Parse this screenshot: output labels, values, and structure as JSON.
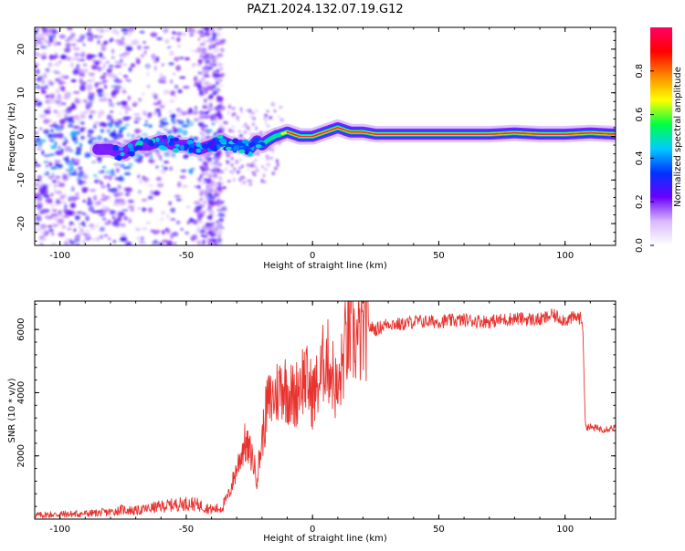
{
  "page_title": "PAZ1.2024.132.07.19.G12",
  "colors": {
    "snr_line": "#e8332f",
    "spectrogram_ridge": "#ff2a2a",
    "axis": "#000000"
  },
  "chart_data": [
    {
      "type": "heatmap",
      "title": "PAZ1.2024.132.07.19.G12",
      "xlabel": "Height of straight line (km)",
      "ylabel": "Frequency (Hz)",
      "xlim": [
        -110,
        120
      ],
      "ylim": [
        -25,
        25
      ],
      "x_ticks": [
        -100,
        -50,
        0,
        50,
        100
      ],
      "y_ticks": [
        -20,
        -10,
        0,
        10,
        20
      ],
      "colorbar": {
        "label": "Normalized spectral amplitude",
        "range": [
          0.0,
          1.0
        ],
        "ticks": [
          0.0,
          0.2,
          0.4,
          0.6,
          0.8
        ],
        "colormap": [
          "#ffffff",
          "#d9b8ff",
          "#6a00ff",
          "#0033ff",
          "#00ccff",
          "#00ff44",
          "#ffff00",
          "#ff8800",
          "#ff0000",
          "#ff0066"
        ]
      },
      "ridge": {
        "x": [
          -80,
          -75,
          -70,
          -65,
          -60,
          -55,
          -50,
          -45,
          -40,
          -36,
          -32,
          -28,
          -25,
          -22,
          -20,
          -18,
          -15,
          -10,
          -5,
          0,
          5,
          10,
          15,
          20,
          25,
          30,
          40,
          50,
          60,
          70,
          80,
          90,
          100,
          110,
          120
        ],
        "y": [
          -3,
          -4,
          -2,
          -2,
          -1,
          -2,
          -2,
          -3,
          -2,
          -1,
          -2,
          -2,
          -3,
          -1,
          -2,
          -1,
          0,
          1,
          0,
          0,
          1,
          2,
          1,
          1,
          0.5,
          0.5,
          0.5,
          0.5,
          0.5,
          0.5,
          0.8,
          0.5,
          0.5,
          0.8,
          0.5
        ]
      }
    },
    {
      "type": "line",
      "xlabel": "Height of straight line (km)",
      "ylabel": "SNR (10 * v/v)",
      "xlim": [
        -110,
        120
      ],
      "ylim": [
        0,
        6900
      ],
      "x_ticks": [
        -100,
        -50,
        0,
        50,
        100
      ],
      "y_ticks": [
        2000,
        4000,
        6000
      ],
      "series": [
        {
          "x": [
            -110,
            -100,
            -90,
            -80,
            -75,
            -70,
            -60,
            -50,
            -45,
            -40,
            -36,
            -33,
            -30,
            -27,
            -24,
            -22,
            -20,
            -18,
            -15,
            -12,
            -10,
            -7,
            -5,
            -3,
            0,
            3,
            5,
            8,
            10,
            13,
            15,
            18,
            20,
            22,
            25,
            30,
            35,
            40,
            50,
            60,
            70,
            80,
            90,
            95,
            100,
            105,
            106,
            107,
            108,
            110,
            115,
            120
          ],
          "y": [
            120,
            150,
            170,
            220,
            300,
            260,
            400,
            500,
            450,
            300,
            350,
            800,
            1600,
            2400,
            2000,
            1300,
            2500,
            3600,
            3900,
            4300,
            4100,
            3800,
            4400,
            4500,
            3900,
            4400,
            5200,
            4600,
            3900,
            5500,
            5800,
            5600,
            5900,
            6100,
            6000,
            6200,
            6150,
            6250,
            6250,
            6300,
            6250,
            6350,
            6300,
            6450,
            6300,
            6400,
            6350,
            6200,
            2950,
            2900,
            2850,
            2900
          ]
        }
      ]
    }
  ]
}
